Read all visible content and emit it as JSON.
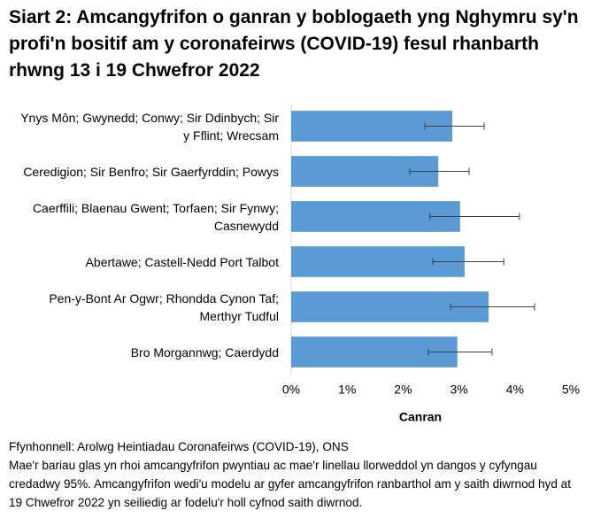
{
  "chart_data": {
    "type": "bar",
    "orientation": "horizontal",
    "title": "Siart 2: Amcangyfrifon o ganran y boblogaeth yng Nghymru sy'n profi'n bositif am y coronafeirws (COVID-19) fesul rhanbarth rhwng 13 i 19 Chwefror 2022",
    "categories": [
      "Ynys Môn; Gwynedd; Conwy; Sir Ddinbych; Sir y Fflint; Wrecsam",
      "Ceredigion; Sir Benfro; Sir Gaerfyrddin; Powys",
      "Caerffili; Blaenau Gwent; Torfaen; Sir Fynwy; Casnewydd",
      "Abertawe; Castell-Nedd Port Talbot",
      "Pen-y-Bont Ar Ogwr; Rhondda Cynon Taf; Merthyr Tudful",
      "Bro Morgannwg; Caerdydd"
    ],
    "values": [
      2.88,
      2.63,
      3.02,
      3.1,
      3.53,
      2.97
    ],
    "ci_low": [
      2.39,
      2.12,
      2.48,
      2.53,
      2.85,
      2.45
    ],
    "ci_high": [
      3.45,
      3.18,
      4.08,
      3.8,
      4.35,
      3.59
    ],
    "color": "#5b9bd5",
    "x_label": "Canran",
    "xlim": [
      0,
      5
    ],
    "xticks": [
      {
        "value": 0,
        "label": "0%"
      },
      {
        "value": 1,
        "label": "1%"
      },
      {
        "value": 2,
        "label": "2%"
      },
      {
        "value": 3,
        "label": "3%"
      },
      {
        "value": 4,
        "label": "4%"
      },
      {
        "value": 5,
        "label": "5%"
      }
    ],
    "grid": false,
    "source": "Ffynhonnell: Arolwg Heintiadau Coronafeirws (COVID-19), ONS",
    "note": "Mae'r bariau glas yn rhoi amcangyfrifon pwyntiau ac mae'r linellau llorweddol yn dangos y cyfyngau credadwy 95%. Amcangyfrifon wedi'u modelu ar gyfer amcangyfrifon ranbarthol am y saith diwrnod hyd at 19 Chwefror 2022 yn seiliedig ar fodelu'r holl cyfnod saith diwrnod."
  }
}
